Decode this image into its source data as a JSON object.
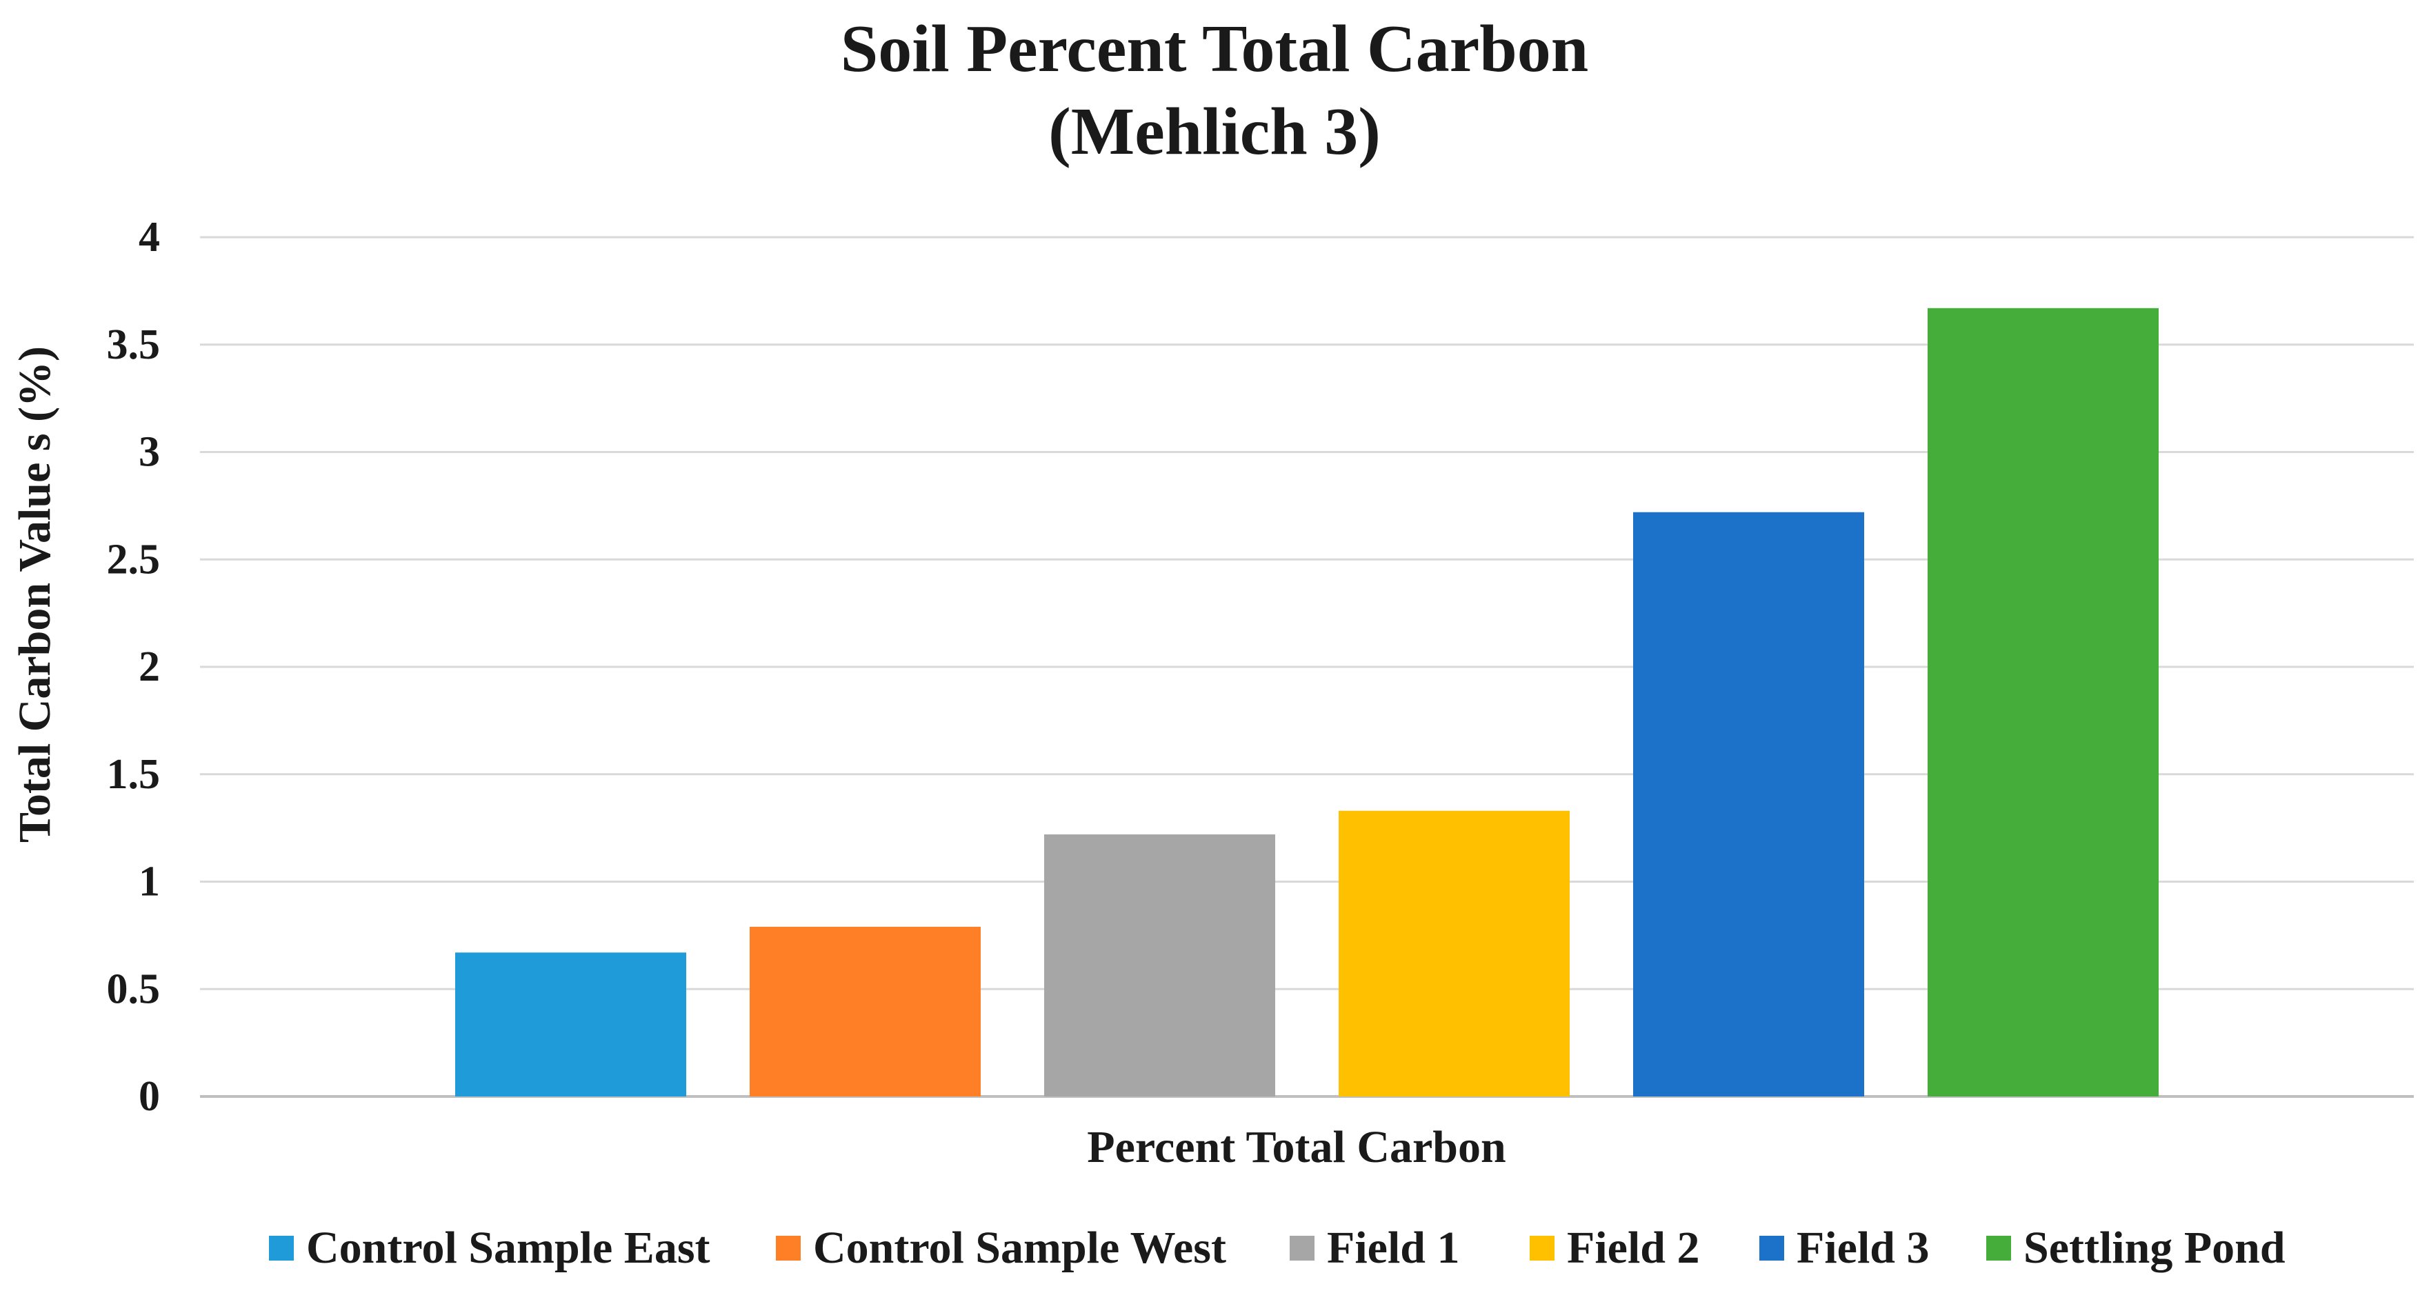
{
  "chart_data": {
    "type": "bar",
    "title": "Soil Percent Total Carbon",
    "subtitle": "(Mehlich 3)",
    "xlabel": "Percent Total Carbon",
    "ylabel": "Total Carbon Value s (%)",
    "ylim": [
      0,
      4
    ],
    "yticks": [
      "0",
      "0.5",
      "1",
      "1.5",
      "2",
      "2.5",
      "3",
      "3.5",
      "4"
    ],
    "grid": true,
    "legend_position": "bottom",
    "series": [
      {
        "name": "Control Sample East",
        "value": 0.67,
        "color": "#1f9bd9"
      },
      {
        "name": "Control Sample West",
        "value": 0.79,
        "color": "#ff7f27"
      },
      {
        "name": "Field 1",
        "value": 1.22,
        "color": "#a6a6a6"
      },
      {
        "name": "Field 2",
        "value": 1.33,
        "color": "#ffc000"
      },
      {
        "name": "Field 3",
        "value": 2.72,
        "color": "#1b72c8"
      },
      {
        "name": "Settling Pond",
        "value": 3.67,
        "color": "#45ad3a"
      }
    ]
  }
}
